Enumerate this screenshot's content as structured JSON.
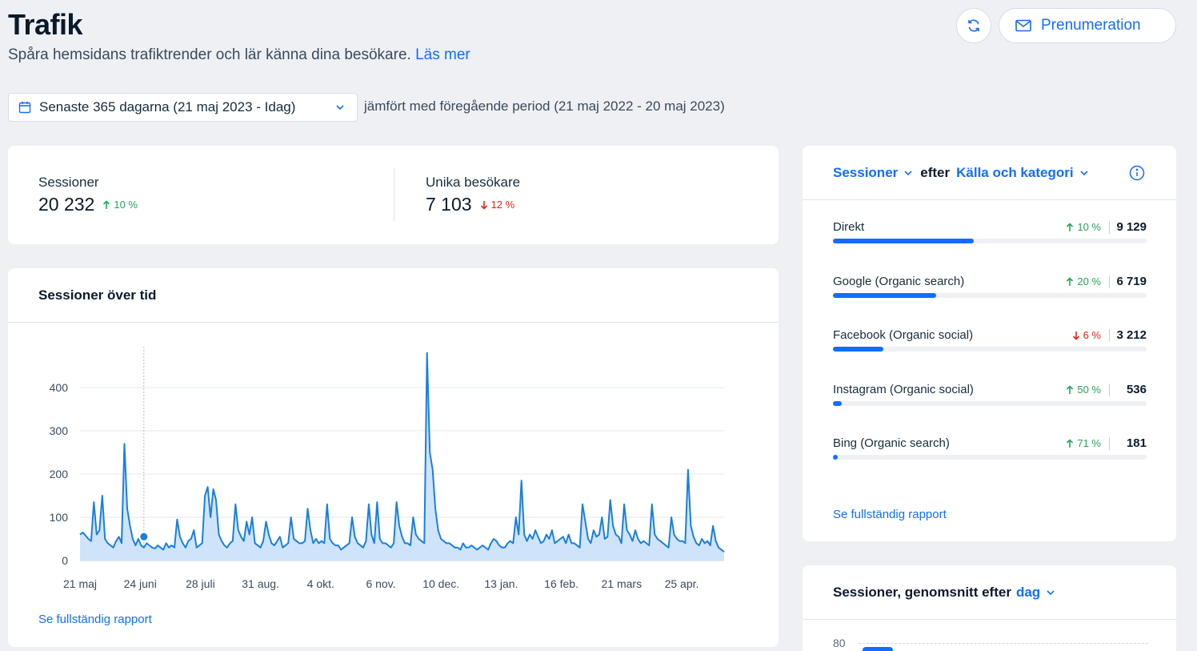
{
  "header": {
    "title": "Trafik",
    "subtitle": "Spåra hemsidans trafiktrender och lär känna dina besökare.",
    "learn_more": "Läs mer",
    "subscribe_label": "Prenumeration"
  },
  "filters": {
    "date_range": "Senaste 365 dagarna (21 maj 2023 - Idag)",
    "compare_text": "jämfört med föregående period (21 maj 2022 - 20 maj 2023)"
  },
  "kpis": [
    {
      "label": "Sessioner",
      "value": "20 232",
      "change": "10 %",
      "direction": "up"
    },
    {
      "label": "Unika besökare",
      "value": "7 103",
      "change": "12 %",
      "direction": "down"
    }
  ],
  "sessions_chart": {
    "title": "Sessioner över tid",
    "report_link": "Se fullständig rapport",
    "y_ticks": [
      "0",
      "100",
      "200",
      "300",
      "400"
    ],
    "x_ticks": [
      "21 maj",
      "24 juni",
      "28 juli",
      "31 aug.",
      "4 okt.",
      "6 nov.",
      "10 dec.",
      "13 jan.",
      "16 feb.",
      "21 mars",
      "25 apr."
    ]
  },
  "chart_data": {
    "type": "area",
    "title": "Sessioner över tid",
    "xlabel": "",
    "ylabel": "",
    "ylim": [
      0,
      480
    ],
    "x_range": [
      "2023-05-21",
      "2024-05-20"
    ],
    "grid": true,
    "series": [
      {
        "values": [
          60,
          65,
          58,
          50,
          45,
          135,
          60,
          70,
          150,
          50,
          40,
          35,
          30,
          45,
          55,
          40,
          270,
          120,
          80,
          50,
          35,
          50,
          35,
          30,
          40,
          35,
          30,
          28,
          35,
          30,
          25,
          40,
          30,
          35,
          30,
          95,
          55,
          40,
          30,
          45,
          50,
          70,
          30,
          35,
          40,
          150,
          170,
          100,
          165,
          140,
          60,
          45,
          35,
          30,
          40,
          45,
          130,
          70,
          55,
          45,
          90,
          60,
          100,
          40,
          35,
          30,
          45,
          90,
          60,
          40,
          35,
          45,
          55,
          30,
          35,
          40,
          100,
          50,
          45,
          40,
          40,
          45,
          120,
          70,
          40,
          50,
          40,
          45,
          40,
          130,
          50,
          40,
          35,
          35,
          25,
          30,
          35,
          40,
          100,
          55,
          40,
          35,
          30,
          45,
          130,
          60,
          40,
          135,
          50,
          40,
          40,
          35,
          30,
          40,
          135,
          80,
          55,
          40,
          40,
          35,
          100,
          60,
          50,
          45,
          40,
          480,
          250,
          210,
          120,
          70,
          50,
          45,
          40,
          40,
          35,
          30,
          30,
          25,
          40,
          30,
          30,
          35,
          30,
          25,
          30,
          35,
          30,
          25,
          40,
          50,
          45,
          35,
          30,
          30,
          40,
          45,
          40,
          100,
          60,
          185,
          60,
          45,
          60,
          50,
          70,
          55,
          40,
          45,
          60,
          50,
          70,
          40,
          45,
          50,
          55,
          40,
          60,
          40,
          40,
          35,
          30,
          130,
          90,
          50,
          40,
          70,
          55,
          60,
          100,
          50,
          55,
          140,
          80,
          60,
          55,
          40,
          130,
          70,
          60,
          45,
          70,
          50,
          40,
          45,
          40,
          35,
          130,
          60,
          50,
          45,
          40,
          35,
          30,
          100,
          60,
          50,
          45,
          45,
          40,
          210,
          80,
          55,
          40,
          35,
          50,
          40,
          45,
          35,
          80,
          45,
          30,
          25,
          20
        ]
      }
    ],
    "highlight_point": {
      "x": "2023-06-24",
      "y": 55
    }
  },
  "sources": {
    "metric_label": "Sessioner",
    "by_label": "efter",
    "dimension_label": "Källa och kategori",
    "report_link": "Se fullständig rapport",
    "rows": [
      {
        "name": "Direkt",
        "change": "10 %",
        "direction": "up",
        "value": "9 129",
        "fraction": 0.45
      },
      {
        "name": "Google (Organic search)",
        "change": "20 %",
        "direction": "up",
        "value": "6 719",
        "fraction": 0.33
      },
      {
        "name": "Facebook (Organic social)",
        "change": "6 %",
        "direction": "down",
        "value": "3 212",
        "fraction": 0.16
      },
      {
        "name": "Instagram (Organic social)",
        "change": "50 %",
        "direction": "up",
        "value": "536",
        "fraction": 0.027
      },
      {
        "name": "Bing (Organic search)",
        "change": "71 %",
        "direction": "up",
        "value": "181",
        "fraction": 0.009
      }
    ]
  },
  "avg_by_day": {
    "title": "Sessioner, genomsnitt efter",
    "dimension": "dag",
    "y_tick": "80"
  },
  "colors": {
    "accent": "#116dff",
    "up": "#25a55a",
    "down": "#e62214",
    "line": "#1a7fe0",
    "area": "#cfe4fb"
  }
}
